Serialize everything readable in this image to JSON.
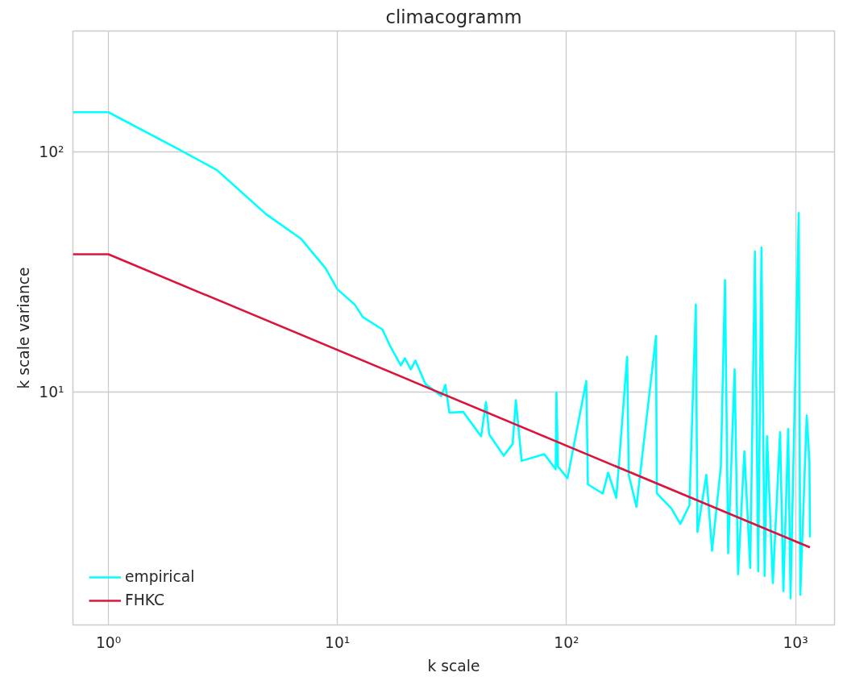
{
  "chart_data": {
    "type": "line",
    "title": "climacogramm",
    "xlabel": "k scale",
    "ylabel": "k scale variance",
    "log": "xy",
    "grid": true,
    "legend": "bottom left",
    "line_style": "solid",
    "xlim": [
      0.7,
      1480
    ],
    "ylim": [
      1.07,
      318
    ],
    "xticks": [
      {
        "value": 1,
        "label": "10⁰"
      },
      {
        "value": 10,
        "label": "10¹"
      },
      {
        "value": 100,
        "label": "10²"
      },
      {
        "value": 1000,
        "label": "10³"
      }
    ],
    "yticks": [
      {
        "value": 10,
        "label": "10¹"
      },
      {
        "value": 100,
        "label": "10²"
      }
    ],
    "series": [
      {
        "name": "empirical",
        "color": "#00ffff",
        "x": [
          0.7,
          1,
          2,
          2.98,
          4.86,
          6.95,
          8.87,
          10,
          11.9,
          12.9,
          15.7,
          17,
          18.9,
          19.7,
          20.9,
          21.9,
          24.2,
          28.4,
          29.6,
          30.8,
          35.4,
          42.4,
          44.5,
          46,
          53.2,
          58.2,
          60.1,
          63.7,
          80,
          89.7,
          90.4,
          91.8,
          101,
          122,
          124,
          144,
          152,
          165,
          184,
          187,
          202,
          246,
          248,
          287,
          314,
          344,
          367,
          373,
          408,
          432,
          472,
          492,
          508,
          542,
          561,
          598,
          634,
          665,
          687,
          710,
          733,
          751,
          796,
          856,
          885,
          929,
          951,
          1033,
          1049,
          1119,
          1150,
          1156
        ],
        "values": [
          146,
          146,
          103,
          83.8,
          55.1,
          43.3,
          32.7,
          26.7,
          23.1,
          20.5,
          18.2,
          15.5,
          12.9,
          13.8,
          12.4,
          13.5,
          10.8,
          9.6,
          10.7,
          8.2,
          8.25,
          6.53,
          9.08,
          6.64,
          5.42,
          6.07,
          9.23,
          5.16,
          5.5,
          4.76,
          9.93,
          4.89,
          4.37,
          11.1,
          4.12,
          3.77,
          4.61,
          3.62,
          14.0,
          4.51,
          3.32,
          17.1,
          3.78,
          3.27,
          2.82,
          3.37,
          23.1,
          2.61,
          4.51,
          2.18,
          4.89,
          29.2,
          2.13,
          12.4,
          1.74,
          5.65,
          1.85,
          38.4,
          1.79,
          39.9,
          1.71,
          6.53,
          1.6,
          6.79,
          1.48,
          7.01,
          1.38,
          55.6,
          1.43,
          7.98,
          5.13,
          2.48
        ]
      },
      {
        "name": "FHKC",
        "color": "#dc143c",
        "x": [
          0.7,
          1,
          1156
        ],
        "values": [
          37.4,
          37.4,
          2.25
        ]
      }
    ]
  }
}
